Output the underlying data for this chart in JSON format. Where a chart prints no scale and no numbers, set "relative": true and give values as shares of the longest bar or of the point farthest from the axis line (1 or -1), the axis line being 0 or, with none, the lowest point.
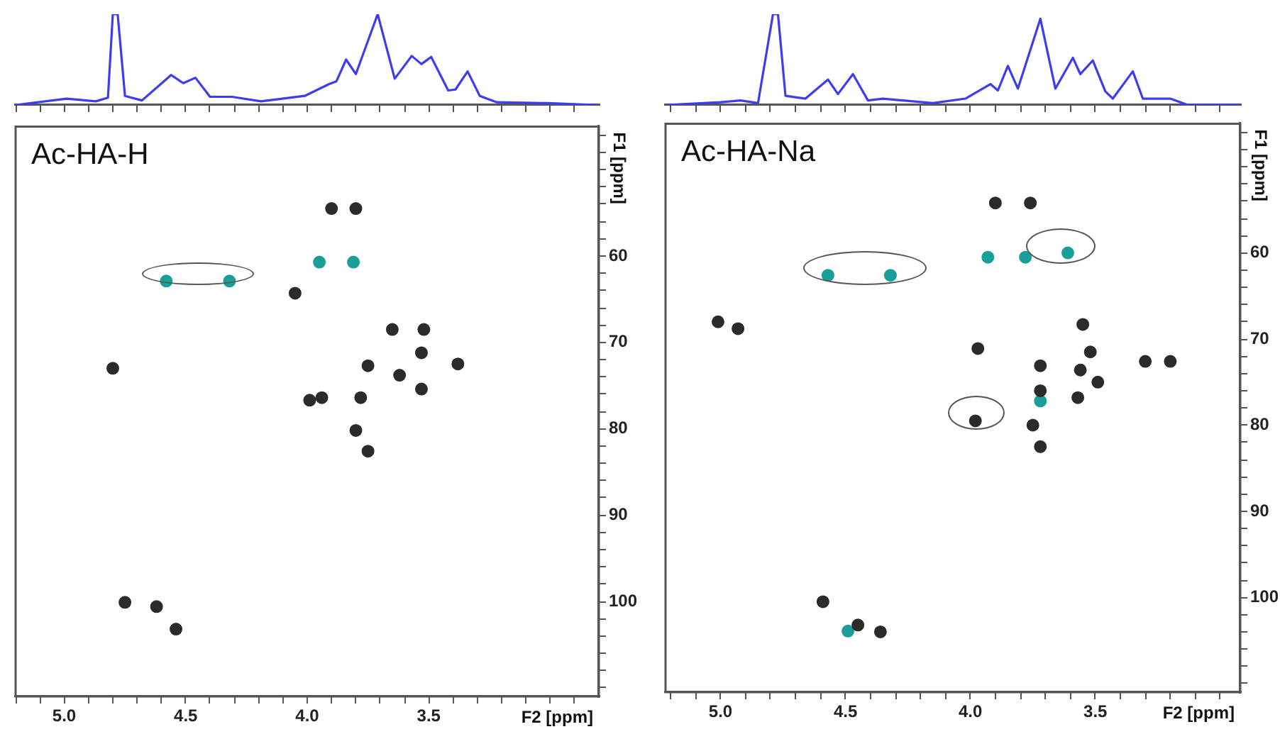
{
  "chart_data": [
    {
      "type": "line",
      "relative": true,
      "tick_labels": false,
      "marker": "none",
      "color": "#3c3cf0",
      "xlim": [
        5.2,
        2.8
      ],
      "xticks": [
        {
          "value": 5.2,
          "label": null
        },
        {
          "value": 5.1,
          "label": null
        },
        {
          "value": 5.0,
          "label": null
        },
        {
          "value": 4.9,
          "label": null
        },
        {
          "value": 4.8,
          "label": null
        },
        {
          "value": 4.7,
          "label": null
        },
        {
          "value": 4.6,
          "label": null
        },
        {
          "value": 4.5,
          "label": null
        },
        {
          "value": 4.4,
          "label": null
        },
        {
          "value": 4.3,
          "label": null
        },
        {
          "value": 4.2,
          "label": null
        },
        {
          "value": 4.1,
          "label": null
        },
        {
          "value": 4.0,
          "label": null
        },
        {
          "value": 3.9,
          "label": null
        },
        {
          "value": 3.8,
          "label": null
        },
        {
          "value": 3.7,
          "label": null
        },
        {
          "value": 3.6,
          "label": null
        },
        {
          "value": 3.5,
          "label": null
        },
        {
          "value": 3.4,
          "label": null
        },
        {
          "value": 3.3,
          "label": null
        },
        {
          "value": 3.2,
          "label": null
        },
        {
          "value": 3.1,
          "label": null
        },
        {
          "value": 3.0,
          "label": null
        },
        {
          "value": 2.9,
          "label": null
        }
      ],
      "x": [
        5.2,
        4.99,
        4.87,
        4.82,
        4.8,
        4.78,
        4.75,
        4.68,
        4.56,
        4.51,
        4.46,
        4.4,
        4.31,
        4.19,
        4.01,
        3.91,
        3.88,
        3.84,
        3.8,
        3.71,
        3.64,
        3.57,
        3.53,
        3.49,
        3.42,
        3.39,
        3.34,
        3.29,
        3.22,
        3.01,
        2.81
      ],
      "values": [
        0,
        0.07,
        0.04,
        0.08,
        1,
        1,
        0.1,
        0.05,
        0.33,
        0.24,
        0.3,
        0.09,
        0.09,
        0.04,
        0.1,
        0.23,
        0.26,
        0.5,
        0.34,
        1,
        0.29,
        0.54,
        0.45,
        0.53,
        0.16,
        0.17,
        0.37,
        0.1,
        0.03,
        0.02,
        0
      ]
    },
    {
      "type": "scatter",
      "title": "Ac-HA-H",
      "xlabel": "F2 [ppm]",
      "ylabel": "F1 [ppm]",
      "marker": "circle",
      "xlim": [
        5.2,
        2.8
      ],
      "ylim": [
        111,
        45
      ],
      "xticks": [
        {
          "value": 5.2,
          "label": null
        },
        {
          "value": 5.1,
          "label": null
        },
        {
          "value": 5.0,
          "label": "5.0"
        },
        {
          "value": 4.9,
          "label": null
        },
        {
          "value": 4.8,
          "label": null
        },
        {
          "value": 4.7,
          "label": null
        },
        {
          "value": 4.6,
          "label": null
        },
        {
          "value": 4.5,
          "label": "4.5"
        },
        {
          "value": 4.4,
          "label": null
        },
        {
          "value": 4.3,
          "label": null
        },
        {
          "value": 4.2,
          "label": null
        },
        {
          "value": 4.1,
          "label": null
        },
        {
          "value": 4.0,
          "label": "4.0"
        },
        {
          "value": 3.9,
          "label": null
        },
        {
          "value": 3.8,
          "label": null
        },
        {
          "value": 3.7,
          "label": null
        },
        {
          "value": 3.6,
          "label": null
        },
        {
          "value": 3.5,
          "label": "3.5"
        },
        {
          "value": 3.4,
          "label": null
        },
        {
          "value": 3.3,
          "label": null
        },
        {
          "value": 3.2,
          "label": null
        },
        {
          "value": 3.1,
          "label": null
        },
        {
          "value": 3.0,
          "label": null
        },
        {
          "value": 2.9,
          "label": null
        }
      ],
      "yticks": [
        {
          "value": 46,
          "label": null
        },
        {
          "value": 48,
          "label": null
        },
        {
          "value": 50,
          "label": null
        },
        {
          "value": 52,
          "label": null
        },
        {
          "value": 54,
          "label": null
        },
        {
          "value": 56,
          "label": null
        },
        {
          "value": 58,
          "label": null
        },
        60,
        {
          "value": 62,
          "label": null
        },
        {
          "value": 64,
          "label": null
        },
        {
          "value": 66,
          "label": null
        },
        {
          "value": 68,
          "label": null
        },
        70,
        {
          "value": 72,
          "label": null
        },
        {
          "value": 74,
          "label": null
        },
        {
          "value": 76,
          "label": null
        },
        {
          "value": 78,
          "label": null
        },
        80,
        {
          "value": 82,
          "label": null
        },
        {
          "value": 84,
          "label": null
        },
        {
          "value": 86,
          "label": null
        },
        {
          "value": 88,
          "label": null
        },
        90,
        {
          "value": 92,
          "label": null
        },
        {
          "value": 94,
          "label": null
        },
        {
          "value": 96,
          "label": null
        },
        {
          "value": 98,
          "label": null
        },
        100,
        {
          "value": 102,
          "label": null
        },
        {
          "value": 104,
          "label": null
        },
        {
          "value": 106,
          "label": null
        },
        {
          "value": 108,
          "label": null
        },
        {
          "value": 110,
          "label": null
        }
      ],
      "series": [
        {
          "color": "#2b2b2b",
          "x": [
            3.9,
            3.8,
            4.05,
            3.65,
            3.52,
            3.53,
            3.38,
            3.75,
            3.62,
            4.8,
            3.53,
            3.78,
            3.99,
            3.94,
            3.8,
            3.75,
            4.75,
            4.62,
            4.54
          ],
          "values": [
            54.5,
            54.5,
            64.3,
            68.5,
            68.5,
            71.2,
            72.5,
            72.7,
            73.8,
            73,
            75.4,
            76.4,
            76.7,
            76.4,
            80.2,
            82.6,
            100.1,
            100.6,
            103.2
          ]
        },
        {
          "color": "#1a9e9a",
          "x": [
            3.95,
            3.81,
            4.58,
            4.32
          ],
          "values": [
            60.7,
            60.7,
            62.9,
            62.9
          ]
        }
      ]
    },
    {
      "type": "line",
      "relative": true,
      "tick_labels": false,
      "marker": "none",
      "color": "#3c3cf0",
      "xlim": [
        5.22,
        2.92
      ],
      "xticks": [
        {
          "value": 5.2,
          "label": null
        },
        {
          "value": 5.1,
          "label": null
        },
        {
          "value": 5.0,
          "label": null
        },
        {
          "value": 4.9,
          "label": null
        },
        {
          "value": 4.8,
          "label": null
        },
        {
          "value": 4.7,
          "label": null
        },
        {
          "value": 4.6,
          "label": null
        },
        {
          "value": 4.5,
          "label": null
        },
        {
          "value": 4.4,
          "label": null
        },
        {
          "value": 4.3,
          "label": null
        },
        {
          "value": 4.2,
          "label": null
        },
        {
          "value": 4.1,
          "label": null
        },
        {
          "value": 4.0,
          "label": null
        },
        {
          "value": 3.9,
          "label": null
        },
        {
          "value": 3.8,
          "label": null
        },
        {
          "value": 3.7,
          "label": null
        },
        {
          "value": 3.6,
          "label": null
        },
        {
          "value": 3.5,
          "label": null
        },
        {
          "value": 3.4,
          "label": null
        },
        {
          "value": 3.3,
          "label": null
        },
        {
          "value": 3.2,
          "label": null
        },
        {
          "value": 3.1,
          "label": null
        },
        {
          "value": 3.0,
          "label": null
        }
      ],
      "x": [
        5.22,
        5.0,
        4.92,
        4.85,
        4.79,
        4.77,
        4.74,
        4.66,
        4.57,
        4.53,
        4.47,
        4.41,
        4.35,
        4.15,
        4.02,
        3.92,
        3.89,
        3.85,
        3.81,
        3.72,
        3.66,
        3.59,
        3.56,
        3.51,
        3.46,
        3.43,
        3.35,
        3.31,
        3.2,
        3.13,
        2.92
      ],
      "values": [
        0,
        0.03,
        0.05,
        0.02,
        1,
        1,
        0.1,
        0.07,
        0.28,
        0.12,
        0.34,
        0.05,
        0.07,
        0.02,
        0.07,
        0.23,
        0.16,
        0.43,
        0.18,
        0.95,
        0.18,
        0.52,
        0.34,
        0.49,
        0.15,
        0.07,
        0.37,
        0.07,
        0.07,
        0,
        0
      ]
    },
    {
      "type": "scatter",
      "title": "Ac-HA-Na",
      "xlabel": "F2 [ppm]",
      "ylabel": "F1 [ppm]",
      "marker": "circle",
      "xlim": [
        5.22,
        2.92
      ],
      "ylim": [
        111,
        45
      ],
      "xticks": [
        {
          "value": 5.2,
          "label": null
        },
        {
          "value": 5.1,
          "label": null
        },
        {
          "value": 5.0,
          "label": "5.0"
        },
        {
          "value": 4.9,
          "label": null
        },
        {
          "value": 4.8,
          "label": null
        },
        {
          "value": 4.7,
          "label": null
        },
        {
          "value": 4.6,
          "label": null
        },
        {
          "value": 4.5,
          "label": "4.5"
        },
        {
          "value": 4.4,
          "label": null
        },
        {
          "value": 4.3,
          "label": null
        },
        {
          "value": 4.2,
          "label": null
        },
        {
          "value": 4.1,
          "label": null
        },
        {
          "value": 4.0,
          "label": "4.0"
        },
        {
          "value": 3.9,
          "label": null
        },
        {
          "value": 3.8,
          "label": null
        },
        {
          "value": 3.7,
          "label": null
        },
        {
          "value": 3.6,
          "label": null
        },
        {
          "value": 3.5,
          "label": "3.5"
        },
        {
          "value": 3.4,
          "label": null
        },
        {
          "value": 3.3,
          "label": null
        },
        {
          "value": 3.2,
          "label": null
        },
        {
          "value": 3.1,
          "label": null
        },
        {
          "value": 3.0,
          "label": null
        }
      ],
      "yticks": [
        {
          "value": 46,
          "label": null
        },
        {
          "value": 48,
          "label": null
        },
        {
          "value": 50,
          "label": null
        },
        {
          "value": 52,
          "label": null
        },
        {
          "value": 54,
          "label": null
        },
        {
          "value": 56,
          "label": null
        },
        {
          "value": 58,
          "label": null
        },
        60,
        {
          "value": 62,
          "label": null
        },
        {
          "value": 64,
          "label": null
        },
        {
          "value": 66,
          "label": null
        },
        {
          "value": 68,
          "label": null
        },
        70,
        {
          "value": 72,
          "label": null
        },
        {
          "value": 74,
          "label": null
        },
        {
          "value": 76,
          "label": null
        },
        {
          "value": 78,
          "label": null
        },
        80,
        {
          "value": 82,
          "label": null
        },
        {
          "value": 84,
          "label": null
        },
        {
          "value": 86,
          "label": null
        },
        {
          "value": 88,
          "label": null
        },
        90,
        {
          "value": 92,
          "label": null
        },
        {
          "value": 94,
          "label": null
        },
        {
          "value": 96,
          "label": null
        },
        {
          "value": 98,
          "label": null
        },
        100,
        {
          "value": 102,
          "label": null
        },
        {
          "value": 104,
          "label": null
        },
        {
          "value": 106,
          "label": null
        },
        {
          "value": 108,
          "label": null
        },
        {
          "value": 110,
          "label": null
        }
      ],
      "series": [
        {
          "color": "#2b2b2b",
          "x": [
            3.9,
            3.76,
            4.93,
            5.01,
            3.55,
            3.97,
            3.52,
            3.3,
            3.2,
            3.72,
            3.56,
            3.49,
            3.72,
            3.57,
            3.98,
            3.75,
            3.72,
            4.59,
            4.45,
            4.36
          ],
          "values": [
            54.2,
            54.2,
            68.8,
            68,
            68.3,
            71.1,
            71.5,
            72.6,
            72.6,
            73.1,
            73.6,
            75,
            76,
            76.8,
            79.5,
            80,
            82.5,
            100.5,
            103.2,
            104
          ]
        },
        {
          "color": "#1a9e9a",
          "x": [
            3.93,
            3.78,
            3.61,
            4.57,
            4.32,
            3.72,
            4.49
          ],
          "values": [
            60.5,
            60.5,
            60,
            62.6,
            62.6,
            77.2,
            103.9
          ]
        }
      ]
    }
  ]
}
